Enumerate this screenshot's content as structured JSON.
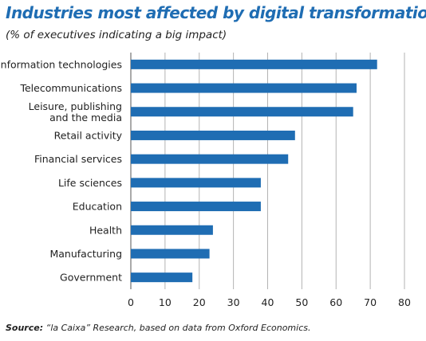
{
  "header": {
    "title": "Industries most affected by digital transformation",
    "subtitle": "(% of executives indicating a big impact)"
  },
  "source": {
    "label": "Source:",
    "text": "“la Caixa” Research, based on data from Oxford Economics."
  },
  "colors": {
    "bar": "#1f6db3",
    "title": "#1f6db3",
    "grid": "#b3b3b3"
  },
  "chart_data": {
    "type": "bar",
    "orientation": "horizontal",
    "categories": [
      [
        "Information technologies"
      ],
      [
        "Telecommunications"
      ],
      [
        "Leisure, publishing",
        "and the media"
      ],
      [
        "Retail activity"
      ],
      [
        "Financial services"
      ],
      [
        "Life sciences"
      ],
      [
        "Education"
      ],
      [
        "Health"
      ],
      [
        "Manufacturing"
      ],
      [
        "Government"
      ]
    ],
    "values": [
      72,
      66,
      65,
      48,
      46,
      38,
      38,
      24,
      23,
      18
    ],
    "xlim": [
      0,
      80
    ],
    "xticks": [
      0,
      10,
      20,
      30,
      40,
      50,
      60,
      70,
      80
    ],
    "grid": "vertical",
    "legend": "none"
  }
}
